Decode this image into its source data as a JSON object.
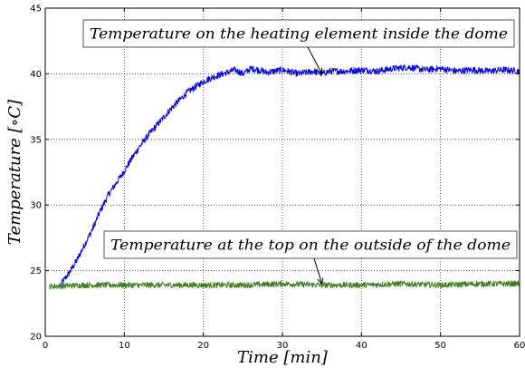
{
  "chart_data": {
    "type": "line",
    "title": "",
    "xlabel": "Time [min]",
    "ylabel": "Temperature [∘C]",
    "xlim": [
      0,
      60
    ],
    "ylim": [
      20,
      45
    ],
    "x_ticks": [
      "0",
      "10",
      "20",
      "30",
      "40",
      "50",
      "60"
    ],
    "y_ticks": [
      "20",
      "25",
      "30",
      "35",
      "40",
      "45"
    ],
    "grid": true,
    "series": [
      {
        "name": "Temperature on the heating element inside the dome",
        "color": "#0000ff",
        "x": [
          2.0,
          3,
          4,
          5,
          6,
          7,
          8,
          9,
          10,
          11,
          12,
          13,
          14,
          15,
          16,
          17,
          18,
          19,
          20,
          21,
          22,
          23,
          24,
          25,
          26,
          27,
          28,
          30,
          32,
          34,
          35,
          36,
          38,
          40,
          42,
          44,
          46,
          48,
          50,
          52,
          54,
          56,
          58,
          60
        ],
        "y": [
          24.0,
          24.8,
          25.8,
          27.0,
          28.2,
          29.6,
          30.8,
          31.7,
          32.6,
          33.6,
          34.5,
          35.3,
          36.0,
          36.7,
          37.4,
          38.0,
          38.6,
          39.0,
          39.4,
          39.7,
          39.9,
          40.1,
          40.3,
          40.0,
          40.4,
          40.3,
          40.1,
          40.3,
          40.0,
          40.2,
          40.0,
          40.2,
          40.2,
          40.3,
          40.2,
          40.4,
          40.5,
          40.3,
          40.4,
          40.2,
          40.3,
          40.2,
          40.3,
          40.2
        ],
        "noise": 0.25
      },
      {
        "name": "Temperature at the top on the outside of the dome",
        "color": "#3f7f1f",
        "x": [
          0.5,
          5,
          10,
          15,
          20,
          25,
          30,
          35,
          40,
          45,
          50,
          55,
          60
        ],
        "y": [
          23.8,
          23.9,
          23.9,
          23.9,
          23.9,
          23.9,
          24.0,
          23.9,
          23.9,
          24.0,
          23.9,
          24.0,
          24.0
        ],
        "noise": 0.22
      }
    ],
    "annotations": [
      {
        "text": "Temperature on the heating element inside the dome",
        "point": [
          35,
          40.0
        ]
      },
      {
        "text": "Temperature at the top on the outside of the dome",
        "point": [
          35,
          24.0
        ]
      }
    ]
  }
}
